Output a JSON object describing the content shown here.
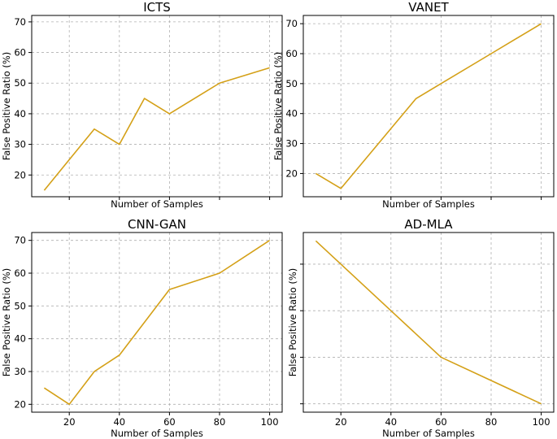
{
  "colors": {
    "line": "#d4a017",
    "grid": "#b0b0b0"
  },
  "chart_data": [
    {
      "type": "line",
      "title": "ICTS",
      "xlabel": "Number of Samples",
      "ylabel": "False Positive Ratio (%)",
      "x": [
        10,
        20,
        30,
        40,
        50,
        60,
        80,
        100
      ],
      "series": [
        {
          "values": [
            15,
            25,
            35,
            30,
            45,
            40,
            50,
            55
          ]
        }
      ],
      "xlim": [
        5,
        105
      ],
      "ylim": [
        12.9,
        72.1
      ],
      "xticks": [
        20,
        40,
        60,
        80,
        100
      ],
      "show_xticklabels": false,
      "yticks": [
        20,
        30,
        40,
        50,
        60,
        70
      ],
      "grid": true
    },
    {
      "type": "line",
      "title": "VANET",
      "xlabel": "Number of Samples",
      "ylabel": "False Positive Ratio (%)",
      "x": [
        10,
        20,
        30,
        40,
        50,
        60,
        80,
        100
      ],
      "series": [
        {
          "values": [
            20,
            15,
            25,
            35,
            45,
            50,
            60,
            70
          ]
        }
      ],
      "xlim": [
        5,
        105
      ],
      "ylim": [
        12.25,
        72.75
      ],
      "xticks": [
        20,
        40,
        60,
        80,
        100
      ],
      "show_xticklabels": false,
      "yticks": [
        20,
        30,
        40,
        50,
        60,
        70
      ],
      "grid": true
    },
    {
      "type": "line",
      "title": "CNN-GAN",
      "xlabel": "Number of Samples",
      "ylabel": "False Positive Ratio (%)",
      "x": [
        10,
        20,
        30,
        40,
        60,
        80,
        100
      ],
      "series": [
        {
          "values": [
            25,
            20,
            30,
            35,
            55,
            60,
            70
          ]
        }
      ],
      "xlim": [
        5,
        105
      ],
      "ylim": [
        17.6,
        72.4
      ],
      "xticks": [
        20,
        40,
        60,
        80,
        100
      ],
      "show_xticklabels": true,
      "yticks": [
        20,
        30,
        40,
        50,
        60,
        70
      ],
      "grid": true
    },
    {
      "type": "line",
      "title": "AD-MLA",
      "xlabel": "Number of Samples",
      "ylabel": "False Positive Ratio (%)",
      "x": [
        10,
        20,
        40,
        60,
        100
      ],
      "series": [
        {
          "values": [
            55,
            50,
            40,
            30,
            20
          ]
        }
      ],
      "xlim": [
        5,
        105
      ],
      "ylim": [
        18.2,
        56.8
      ],
      "xticks": [
        20,
        40,
        60,
        80,
        100
      ],
      "show_xticklabels": true,
      "yticks": [
        20,
        30,
        40,
        50
      ],
      "show_yticklabels": false,
      "grid": true
    }
  ]
}
